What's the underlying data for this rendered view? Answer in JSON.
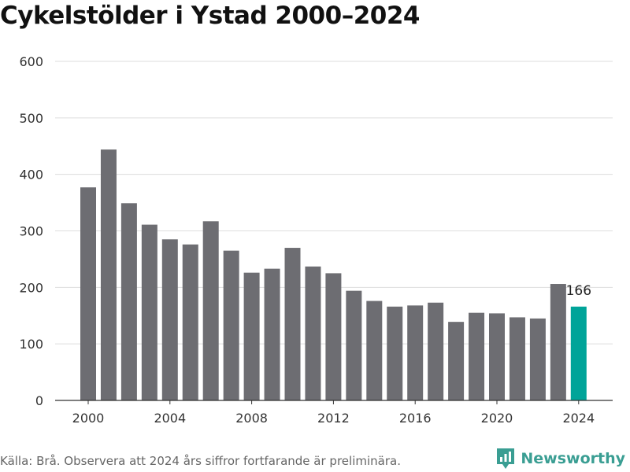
{
  "title": "Cykelstölder i Ystad 2000–2024",
  "footer": {
    "source": "Källa: Brå. Observera att 2024 års siffror fortfarande är preliminära.",
    "brand": "Newsworthy",
    "brand_icon": "newsworthy-logo-icon"
  },
  "colors": {
    "bar": "#6d6d72",
    "highlight": "#00a499",
    "grid": "#dddddd",
    "brand": "#3a9e93"
  },
  "chart_data": {
    "type": "bar",
    "title": "Cykelstölder i Ystad 2000–2024",
    "xlabel": "",
    "ylabel": "",
    "categories": [
      2000,
      2001,
      2002,
      2003,
      2004,
      2005,
      2006,
      2007,
      2008,
      2009,
      2010,
      2011,
      2012,
      2013,
      2014,
      2015,
      2016,
      2017,
      2018,
      2019,
      2020,
      2021,
      2022,
      2023,
      2024
    ],
    "values": [
      377,
      444,
      349,
      311,
      285,
      276,
      317,
      265,
      226,
      233,
      270,
      237,
      225,
      194,
      176,
      166,
      168,
      173,
      139,
      155,
      154,
      147,
      145,
      206,
      166
    ],
    "ylim": [
      0,
      600
    ],
    "yticks": [
      0,
      100,
      200,
      300,
      400,
      500,
      600
    ],
    "xticks": [
      2000,
      2004,
      2008,
      2012,
      2016,
      2020,
      2024
    ],
    "highlight_category": 2024,
    "annotations": [
      {
        "category": 2024,
        "text": "166"
      }
    ],
    "grid": true
  }
}
